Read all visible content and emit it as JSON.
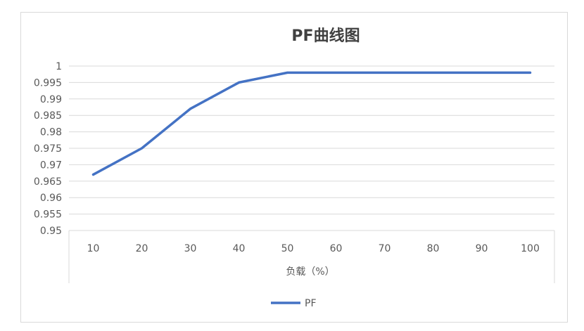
{
  "chart_data": {
    "type": "line",
    "title": "PF曲线图",
    "xlabel": "负载（%）",
    "ylabel": "",
    "categories": [
      "10",
      "20",
      "30",
      "40",
      "50",
      "60",
      "70",
      "80",
      "90",
      "100"
    ],
    "series": [
      {
        "name": "PF",
        "color": "#4472c4",
        "values": [
          0.967,
          0.975,
          0.987,
          0.995,
          0.998,
          0.998,
          0.998,
          0.998,
          0.998,
          0.998
        ]
      }
    ],
    "ylim": [
      0.95,
      1
    ],
    "yticks": [
      "1",
      "0.995",
      "0.99",
      "0.985",
      "0.98",
      "0.975",
      "0.97",
      "0.965",
      "0.96",
      "0.955",
      "0.95"
    ],
    "grid": true,
    "legend_position": "bottom"
  }
}
